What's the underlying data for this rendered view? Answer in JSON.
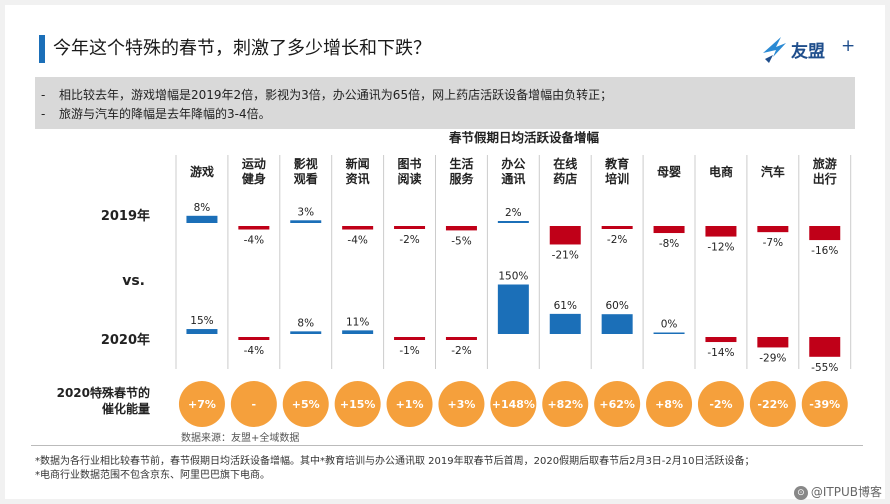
{
  "header": {
    "title": "今年这个特殊的春节，刺激了多少增长和下跌？",
    "accent_color": "#1b6fb8"
  },
  "logo": {
    "icon": "umeng-bird-logo-icon",
    "text": "友盟",
    "plus": "+"
  },
  "summary": {
    "dash": "-",
    "lines": [
      "相比较去年，游戏增幅是2019年2倍，影视为3倍，办公通讯为65倍，网上药店活跃设备增幅由负转正；",
      "旅游与汽车的降幅是去年降幅的3-4倍。"
    ]
  },
  "chart_data": {
    "type": "bar",
    "title": "春节假期日均活跃设备增幅",
    "categories": [
      "游戏",
      "运动\n健身",
      "影视\n观看",
      "新闻\n资讯",
      "图书\n阅读",
      "生活\n服务",
      "办公\n通讯",
      "在线\n药店",
      "教育\n培训",
      "母婴",
      "电商",
      "汽车",
      "旅游\n出行"
    ],
    "series": [
      {
        "name": "2019年",
        "values": [
          8,
          -4,
          3,
          -4,
          -2,
          -5,
          2,
          -21,
          -2,
          -8,
          -12,
          -7,
          -16
        ],
        "labels": [
          "8%",
          "-4%",
          "3%",
          "-4%",
          "-2%",
          "-5%",
          "2%",
          "-21%",
          "-2%",
          "-8%",
          "-12%",
          "-7%",
          "-16%"
        ]
      },
      {
        "name": "2020年",
        "values": [
          15,
          -4,
          8,
          11,
          -1,
          -2,
          150,
          61,
          60,
          0,
          -14,
          -29,
          -55
        ],
        "labels": [
          "15%",
          "-4%",
          "8%",
          "11%",
          "-1%",
          "-2%",
          "150%",
          "61%",
          "60%",
          "0%",
          "-14%",
          "-29%",
          "-55%"
        ]
      }
    ],
    "vs_label": "vs.",
    "catalyst": {
      "label_line1": "2020特殊春节的",
      "label_line2": "催化能量",
      "values": [
        "+7%",
        "-",
        "+5%",
        "+15%",
        "+1%",
        "+3%",
        "+148%",
        "+82%",
        "+62%",
        "+8%",
        "-2%",
        "-22%",
        "-39%"
      ]
    },
    "colors": {
      "positive": "#1b6fb8",
      "negative": "#c00018",
      "circle": "#f5a03c",
      "grid": "#cccccc"
    }
  },
  "source": "数据来源：友盟+全域数据",
  "footnotes": [
    "*数据为各行业相比较春节前，春节假期日均活跃设备增幅。其中*教育培训与办公通讯取 2019年取春节后首周，2020假期后取春节后2月3日-2月10日活跃设备；",
    "*电商行业数据范围不包含京东、阿里巴巴旗下电商。"
  ],
  "watermark": {
    "icon": "itpub-logo-icon",
    "text": "@ITPUB博客"
  }
}
